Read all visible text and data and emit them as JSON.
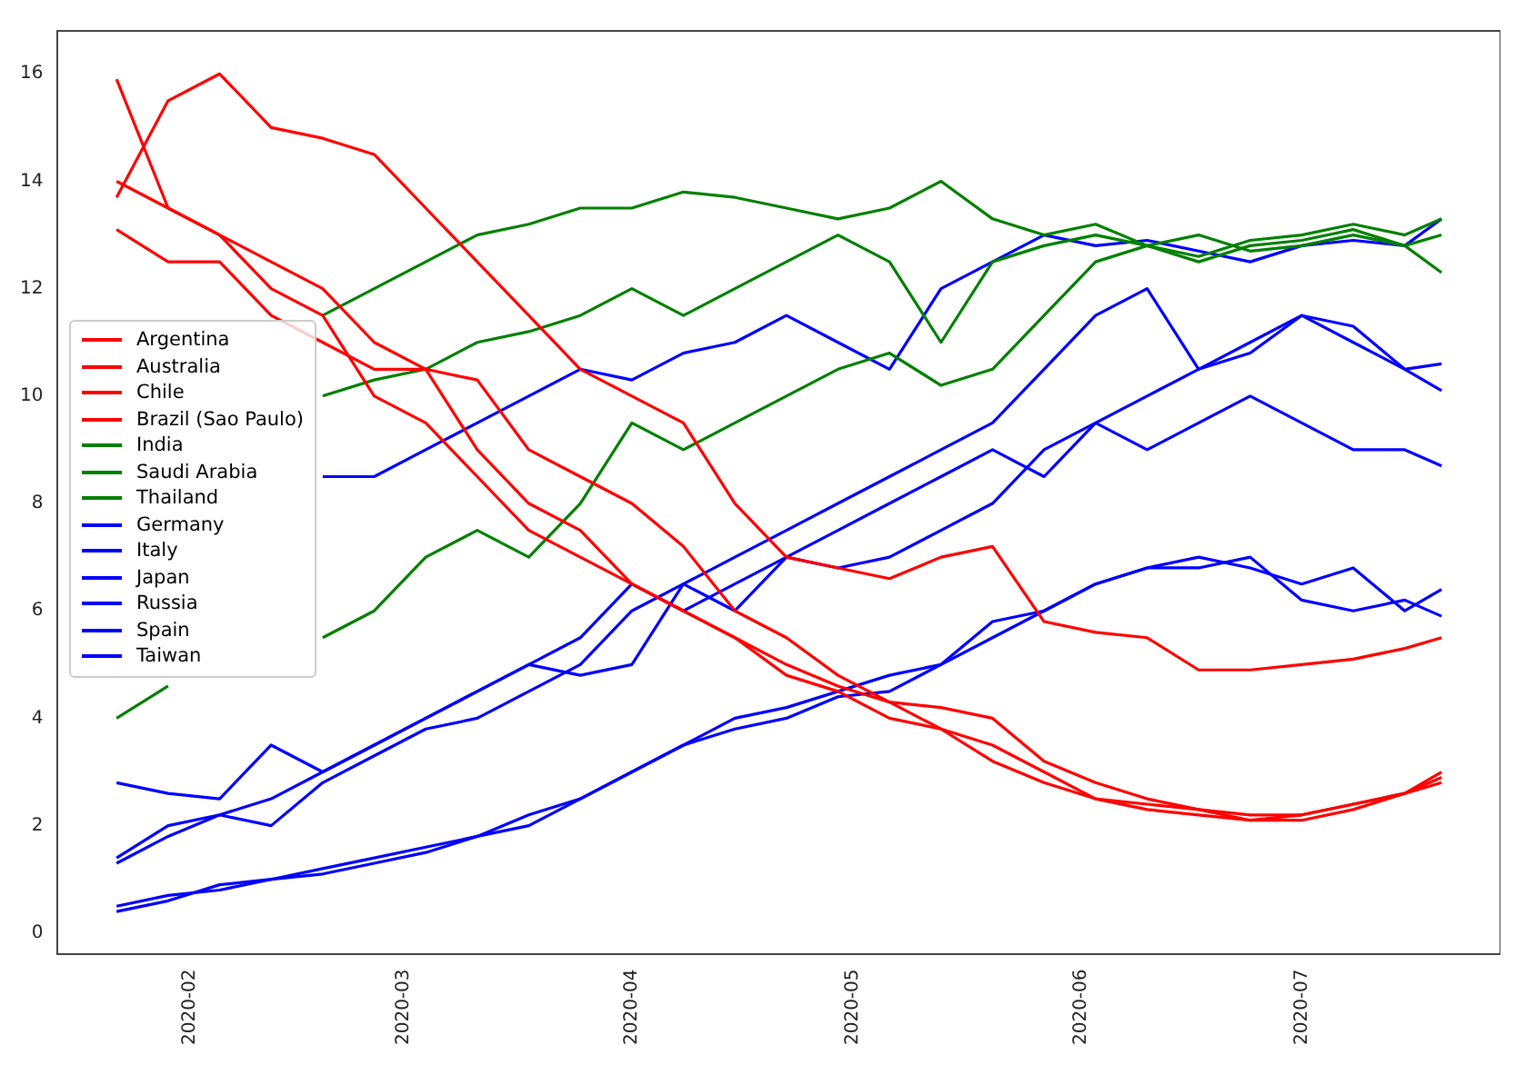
{
  "chart_data": {
    "type": "line",
    "x": [
      "2020-01-22",
      "2020-01-29",
      "2020-02-05",
      "2020-02-12",
      "2020-02-19",
      "2020-02-26",
      "2020-03-04",
      "2020-03-11",
      "2020-03-18",
      "2020-03-25",
      "2020-04-01",
      "2020-04-08",
      "2020-04-15",
      "2020-04-22",
      "2020-04-29",
      "2020-05-06",
      "2020-05-13",
      "2020-05-20",
      "2020-05-27",
      "2020-06-03",
      "2020-06-10",
      "2020-06-17",
      "2020-06-24",
      "2020-07-01",
      "2020-07-08",
      "2020-07-15",
      "2020-07-20"
    ],
    "series": [
      {
        "name": "Argentina",
        "color": "#ff0000",
        "values": [
          13.7,
          15.5,
          16.0,
          15.0,
          14.8,
          14.5,
          13.5,
          12.5,
          11.5,
          10.5,
          10.0,
          9.5,
          8.0,
          7.0,
          6.8,
          6.6,
          7.0,
          7.2,
          5.8,
          5.6,
          5.5,
          4.9,
          4.9,
          5.0,
          5.1,
          5.3,
          5.5
        ]
      },
      {
        "name": "Australia",
        "color": "#ff0000",
        "values": [
          13.1,
          12.5,
          12.5,
          11.5,
          11.0,
          10.5,
          10.5,
          9.0,
          8.0,
          7.5,
          6.5,
          6.0,
          5.5,
          4.8,
          4.5,
          4.0,
          3.8,
          3.5,
          3.0,
          2.5,
          2.4,
          2.3,
          2.2,
          2.2,
          2.4,
          2.6,
          3.0
        ]
      },
      {
        "name": "Chile",
        "color": "#ff0000",
        "values": [
          15.9,
          13.5,
          13.0,
          12.0,
          11.5,
          10.0,
          9.5,
          8.5,
          7.5,
          7.0,
          6.5,
          6.0,
          5.5,
          5.0,
          4.6,
          4.3,
          3.8,
          3.2,
          2.8,
          2.5,
          2.3,
          2.2,
          2.1,
          2.2,
          2.4,
          2.6,
          2.8
        ]
      },
      {
        "name": "Brazil (Sao Paulo)",
        "color": "#ff0000",
        "values": [
          14.0,
          13.5,
          13.0,
          12.5,
          12.0,
          11.0,
          10.5,
          10.3,
          9.0,
          8.5,
          8.0,
          7.2,
          6.0,
          5.5,
          4.8,
          4.3,
          4.2,
          4.0,
          3.2,
          2.8,
          2.5,
          2.3,
          2.1,
          2.1,
          2.3,
          2.6,
          2.9
        ]
      },
      {
        "name": "India",
        "color": "#008000",
        "values": [
          null,
          null,
          null,
          null,
          11.5,
          12.0,
          12.5,
          13.0,
          13.2,
          13.5,
          13.5,
          13.8,
          13.7,
          13.5,
          13.3,
          13.5,
          14.0,
          13.3,
          13.0,
          13.2,
          12.8,
          13.0,
          12.7,
          12.8,
          13.0,
          12.8,
          12.3
        ]
      },
      {
        "name": "Saudi Arabia",
        "color": "#008000",
        "values": [
          null,
          null,
          null,
          null,
          10.0,
          10.3,
          10.5,
          11.0,
          11.2,
          11.5,
          12.0,
          11.5,
          12.0,
          12.5,
          13.0,
          12.5,
          11.0,
          12.5,
          12.8,
          13.0,
          12.8,
          12.6,
          12.9,
          13.0,
          13.2,
          13.0,
          13.3
        ]
      },
      {
        "name": "Thailand",
        "color": "#008000",
        "values": [
          4.0,
          4.6,
          null,
          null,
          5.5,
          6.0,
          7.0,
          7.5,
          7.0,
          8.0,
          9.5,
          9.0,
          9.5,
          10.0,
          10.5,
          10.8,
          10.2,
          10.5,
          11.5,
          12.5,
          12.8,
          12.5,
          12.8,
          12.9,
          13.1,
          12.8,
          13.0
        ]
      },
      {
        "name": "Germany",
        "color": "#0000ff",
        "values": [
          null,
          null,
          null,
          null,
          8.5,
          8.5,
          9.0,
          9.5,
          10.0,
          10.5,
          10.3,
          10.8,
          11.0,
          11.5,
          11.0,
          10.5,
          12.0,
          12.5,
          13.0,
          12.8,
          12.9,
          12.7,
          12.5,
          12.8,
          12.9,
          12.8,
          13.3
        ]
      },
      {
        "name": "Italy",
        "color": "#0000ff",
        "values": [
          2.8,
          2.6,
          2.5,
          3.5,
          3.0,
          3.5,
          4.0,
          4.5,
          5.0,
          4.8,
          5.0,
          6.5,
          7.0,
          7.5,
          8.0,
          8.5,
          9.0,
          9.5,
          10.5,
          11.5,
          12.0,
          10.5,
          11.0,
          11.5,
          11.0,
          10.5,
          10.6
        ]
      },
      {
        "name": "Japan",
        "color": "#0000ff",
        "values": [
          1.3,
          1.8,
          2.2,
          2.5,
          3.0,
          3.5,
          4.0,
          4.5,
          5.0,
          5.5,
          6.5,
          6.0,
          6.5,
          7.0,
          7.5,
          8.0,
          8.5,
          9.0,
          8.5,
          9.5,
          9.0,
          9.5,
          10.0,
          9.5,
          9.0,
          9.0,
          8.7
        ]
      },
      {
        "name": "Russia",
        "color": "#0000ff",
        "values": [
          1.4,
          2.0,
          2.2,
          2.0,
          2.8,
          3.3,
          3.8,
          4.0,
          4.5,
          5.0,
          6.0,
          6.5,
          6.0,
          7.0,
          6.8,
          7.0,
          7.5,
          8.0,
          9.0,
          9.5,
          10.0,
          10.5,
          10.8,
          11.5,
          11.3,
          10.5,
          10.1
        ]
      },
      {
        "name": "Spain",
        "color": "#0000ff",
        "values": [
          0.5,
          0.7,
          0.8,
          1.0,
          1.1,
          1.3,
          1.5,
          1.8,
          2.0,
          2.5,
          3.0,
          3.5,
          4.0,
          4.2,
          4.5,
          4.8,
          5.0,
          5.5,
          6.0,
          6.5,
          6.8,
          7.0,
          6.8,
          6.5,
          6.8,
          6.0,
          6.4
        ]
      },
      {
        "name": "Taiwan",
        "color": "#0000ff",
        "values": [
          0.4,
          0.6,
          0.9,
          1.0,
          1.2,
          1.4,
          1.6,
          1.8,
          2.2,
          2.5,
          3.0,
          3.5,
          3.8,
          4.0,
          4.4,
          4.5,
          5.0,
          5.8,
          6.0,
          6.5,
          6.8,
          6.8,
          7.0,
          6.2,
          6.0,
          6.2,
          5.9
        ]
      }
    ],
    "xlim": [
      "2020-01-14",
      "2020-07-28"
    ],
    "xticks": [
      {
        "value": "2020-02-01",
        "label": "2020-02"
      },
      {
        "value": "2020-03-01",
        "label": "2020-03"
      },
      {
        "value": "2020-04-01",
        "label": "2020-04"
      },
      {
        "value": "2020-05-01",
        "label": "2020-05"
      },
      {
        "value": "2020-06-01",
        "label": "2020-06"
      },
      {
        "value": "2020-07-01",
        "label": "2020-07"
      }
    ],
    "ylim": [
      -0.4,
      16.8
    ],
    "yticks": [
      0,
      2,
      4,
      6,
      8,
      10,
      12,
      14,
      16
    ],
    "legend": "center left",
    "grid": false,
    "marker": "none",
    "line_style": "solid"
  }
}
